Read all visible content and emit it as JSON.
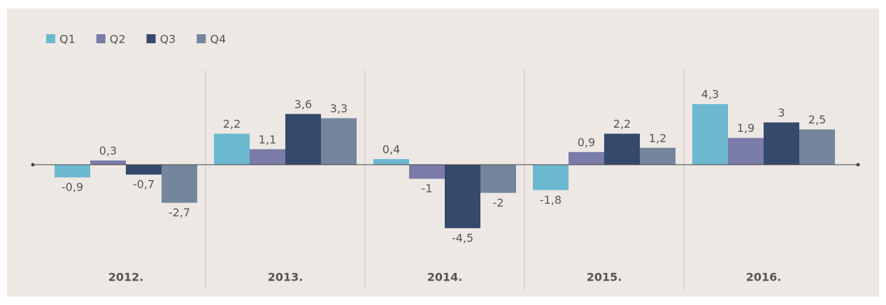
{
  "chart_data": {
    "type": "bar",
    "categories": [
      "2012.",
      "2013.",
      "2014.",
      "2015.",
      "2016."
    ],
    "series": [
      {
        "name": "Q1",
        "color": "#6cb8cf",
        "values": [
          -0.9,
          2.2,
          0.4,
          -1.8,
          4.3
        ],
        "value_labels": [
          "-0,9",
          "2,2",
          "0,4",
          "-1,8",
          "4,3"
        ]
      },
      {
        "name": "Q2",
        "color": "#7a7ba8",
        "values": [
          0.3,
          1.1,
          -1,
          0.9,
          1.9
        ],
        "value_labels": [
          "0,3",
          "1,1",
          "-1",
          "0,9",
          "1,9"
        ]
      },
      {
        "name": "Q3",
        "color": "#34496b",
        "values": [
          -0.7,
          3.6,
          -4.5,
          2.2,
          3
        ],
        "value_labels": [
          "-0,7",
          "3,6",
          "-4,5",
          "2,2",
          "3"
        ]
      },
      {
        "name": "Q4",
        "color": "#74869c",
        "values": [
          -2.7,
          3.3,
          -2,
          1.2,
          2.5
        ],
        "value_labels": [
          "-2,7",
          "3,3",
          "-2",
          "1,2",
          "2,5"
        ]
      }
    ]
  }
}
